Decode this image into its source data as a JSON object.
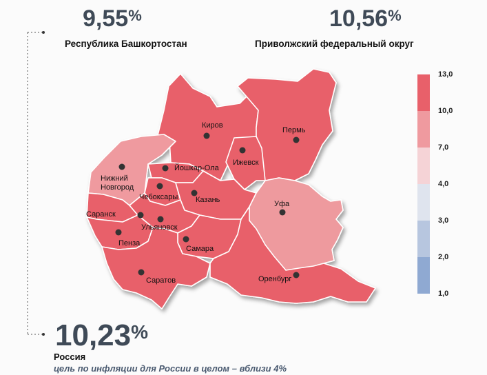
{
  "bashkortostan": {
    "value": "9,55",
    "unit": "%",
    "label": "Республика Башкортостан"
  },
  "volga_district": {
    "value": "10,56",
    "unit": "%",
    "label": "Приволжский федеральный округ"
  },
  "russia": {
    "value": "10,23",
    "unit": "%",
    "label": "Россия",
    "note": "цель по инфляции для России в целом – вблизи 4%"
  },
  "legend": {
    "ticks": [
      "13,0",
      "10,0",
      "7,0",
      "4,0",
      "3,0",
      "2,0",
      "1,0"
    ],
    "colors": [
      "#e8606a",
      "#ef9a9f",
      "#f5d3d6",
      "#dfe4ee",
      "#b7c6df",
      "#8fa9d2",
      "#5b80bd"
    ]
  },
  "map": {
    "colors": {
      "high": "#e8606a",
      "highlight": "#ef9a9f",
      "bashkortostan": "#ee9a9e"
    },
    "cities": [
      "Киров",
      "Пермь",
      "Ижевск",
      "Йошкар-Ола",
      "Нижний Новгород",
      "Чебоксары",
      "Казань",
      "Уфа",
      "Саранск",
      "Ульяновск",
      "Пенза",
      "Самара",
      "Саратов",
      "Оренбург"
    ]
  }
}
